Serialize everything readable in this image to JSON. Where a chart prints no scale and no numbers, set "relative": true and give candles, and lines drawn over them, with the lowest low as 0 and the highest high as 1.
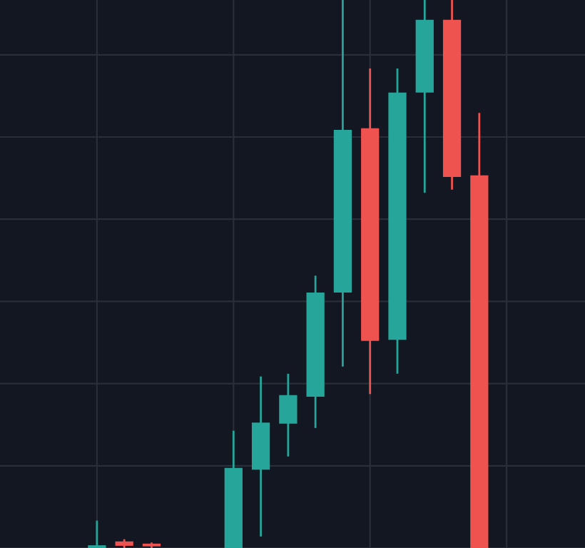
{
  "chart_data": {
    "type": "candlestick",
    "relative": true,
    "grid": true,
    "categories": [
      null,
      null,
      null,
      null,
      null,
      null,
      null,
      null,
      null,
      null,
      null,
      null,
      null,
      null,
      null
    ],
    "ohlc": [
      [
        0,
        0.05,
        0,
        0.005
      ],
      [
        0.012,
        0.016,
        0,
        0.004
      ],
      [
        0.008,
        0.01,
        0,
        0.003
      ],
      null,
      null,
      [
        0,
        0.214,
        0,
        0.146
      ],
      [
        0.143,
        0.313,
        0.021,
        0.229
      ],
      [
        0.227,
        0.318,
        0.167,
        0.279
      ],
      [
        0.276,
        0.497,
        0.219,
        0.466
      ],
      [
        0.466,
        1,
        0.331,
        0.763
      ],
      [
        0.766,
        0.875,
        0.281,
        0.378
      ],
      [
        0.38,
        0.875,
        0.318,
        0.831
      ],
      [
        0.831,
        1,
        0.648,
        0.964
      ],
      [
        0.964,
        1,
        0.654,
        0.677
      ],
      [
        0.68,
        0.794,
        0,
        0
      ]
    ],
    "colors": [
      "#26a69a",
      "#ef5350",
      "#ef5350",
      null,
      null,
      "#26a69a",
      "#26a69a",
      "#26a69a",
      "#26a69a",
      "#26a69a",
      "#ef5350",
      "#26a69a",
      "#26a69a",
      "#ef5350",
      "#ef5350"
    ]
  }
}
